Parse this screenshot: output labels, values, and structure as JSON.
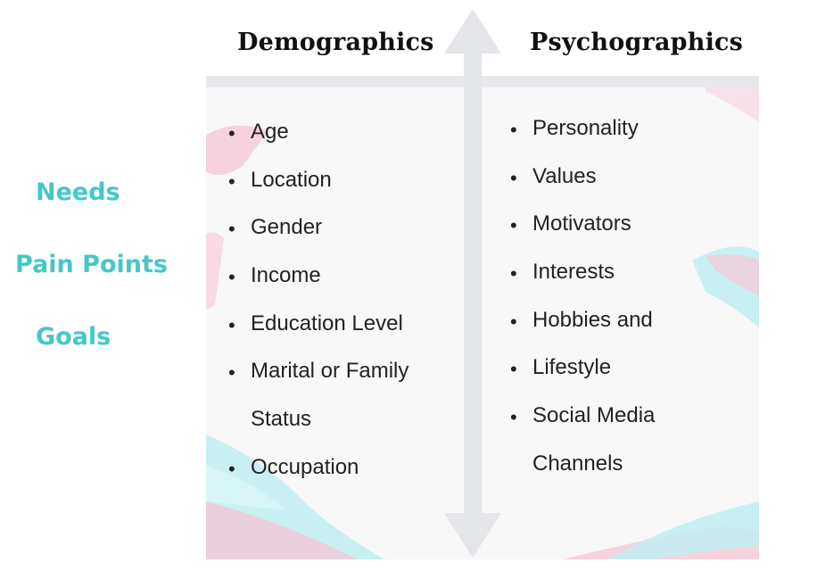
{
  "columns": {
    "demographics": {
      "title": "Demographics",
      "items": [
        "Age",
        "Location",
        "Gender",
        "Income",
        "Education Level",
        "Marital or Family",
        "Status",
        "Occupation"
      ]
    },
    "psychographics": {
      "title": "Psychographics",
      "items": [
        "Personality",
        "Values",
        "Motivators",
        "Interests",
        "Hobbies and",
        "Lifestyle",
        "Social Media",
        "Channels"
      ]
    }
  },
  "side_labels": {
    "needs": "Needs",
    "pain_points": "Pain Points",
    "goals": "Goals"
  },
  "colors": {
    "accent_teal": "#45c7c8",
    "brush_pink": "#f6c6d6",
    "brush_cyan": "#bfeff1",
    "arrow_gray": "#e4e6ea"
  },
  "icons": {
    "axis": "double-headed-vertical-arrow",
    "bullet": "bullet-dot"
  }
}
